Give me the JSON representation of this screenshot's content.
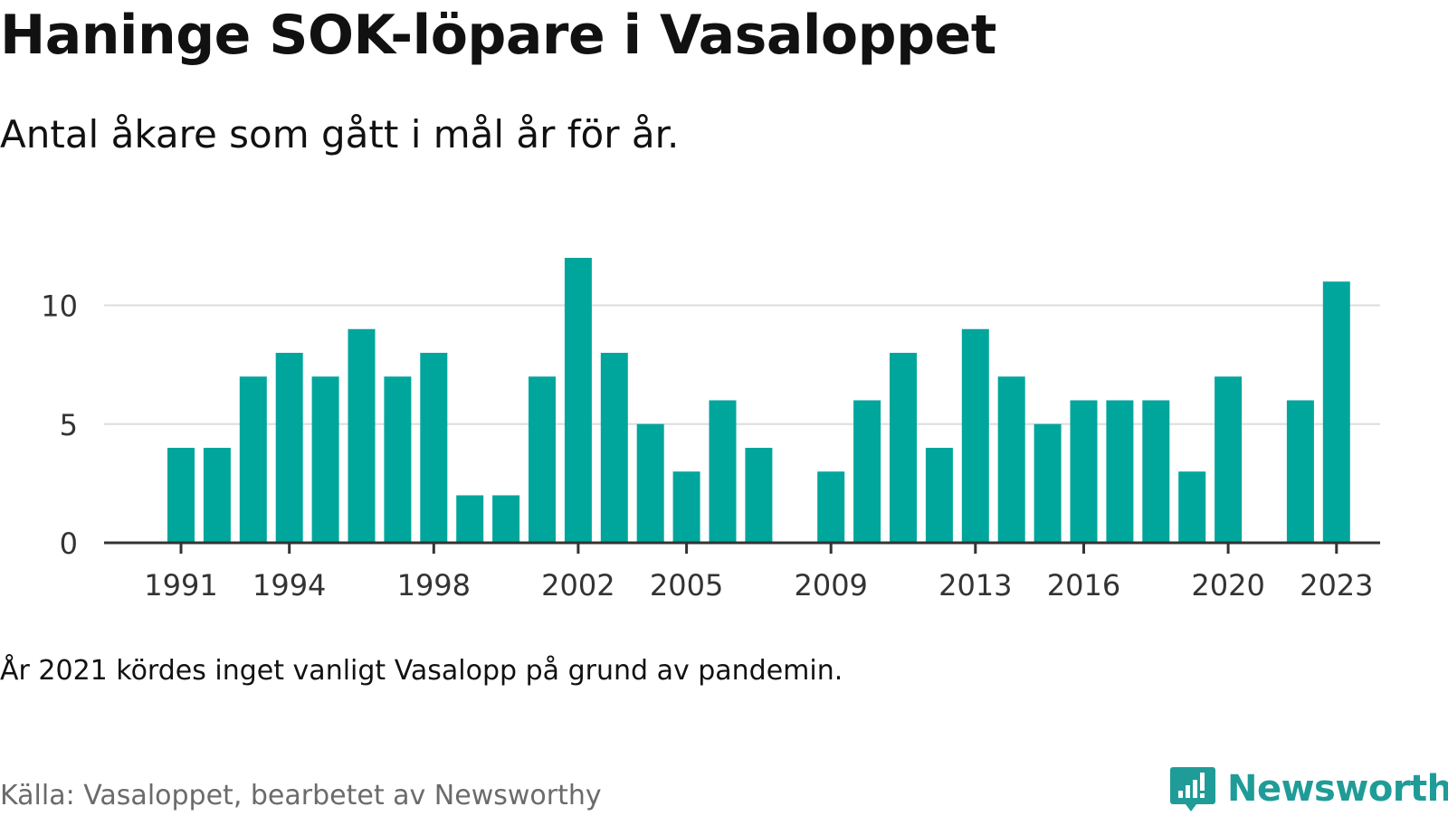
{
  "title": "Haninge SOK-löpare i Vasaloppet",
  "subtitle": "Antal åkare som gått i mål år för år.",
  "note": "År 2021 kördes inget vanligt Vasalopp på grund av pandemin.",
  "source": "Källa: Vasaloppet, bearbetet av Newsworthy",
  "brand": {
    "name": "Newsworthy",
    "icon": "newsworthy-logo-icon"
  },
  "colors": {
    "bar": "#00a69c",
    "grid": "#dddddd",
    "axis": "#333333",
    "tick_text": "#333333",
    "brand": "#1f9c98"
  },
  "chart_data": {
    "type": "bar",
    "title": "",
    "xlabel": "",
    "ylabel": "",
    "x": [
      1991,
      1992,
      1993,
      1994,
      1995,
      1996,
      1997,
      1998,
      1999,
      2000,
      2001,
      2002,
      2003,
      2004,
      2005,
      2006,
      2007,
      2008,
      2009,
      2010,
      2011,
      2012,
      2013,
      2014,
      2015,
      2016,
      2017,
      2018,
      2019,
      2020,
      2021,
      2022,
      2023
    ],
    "values": [
      4,
      4,
      7,
      8,
      7,
      9,
      7,
      8,
      2,
      2,
      7,
      12,
      8,
      5,
      3,
      6,
      4,
      0,
      3,
      6,
      8,
      4,
      9,
      7,
      5,
      6,
      6,
      6,
      3,
      7,
      null,
      6,
      11
    ],
    "xticks": [
      1991,
      1994,
      1998,
      2002,
      2005,
      2009,
      2013,
      2016,
      2020,
      2023
    ],
    "yticks": [
      0,
      5,
      10
    ],
    "ylim": [
      0,
      12
    ],
    "grid": true,
    "legend": "none"
  }
}
